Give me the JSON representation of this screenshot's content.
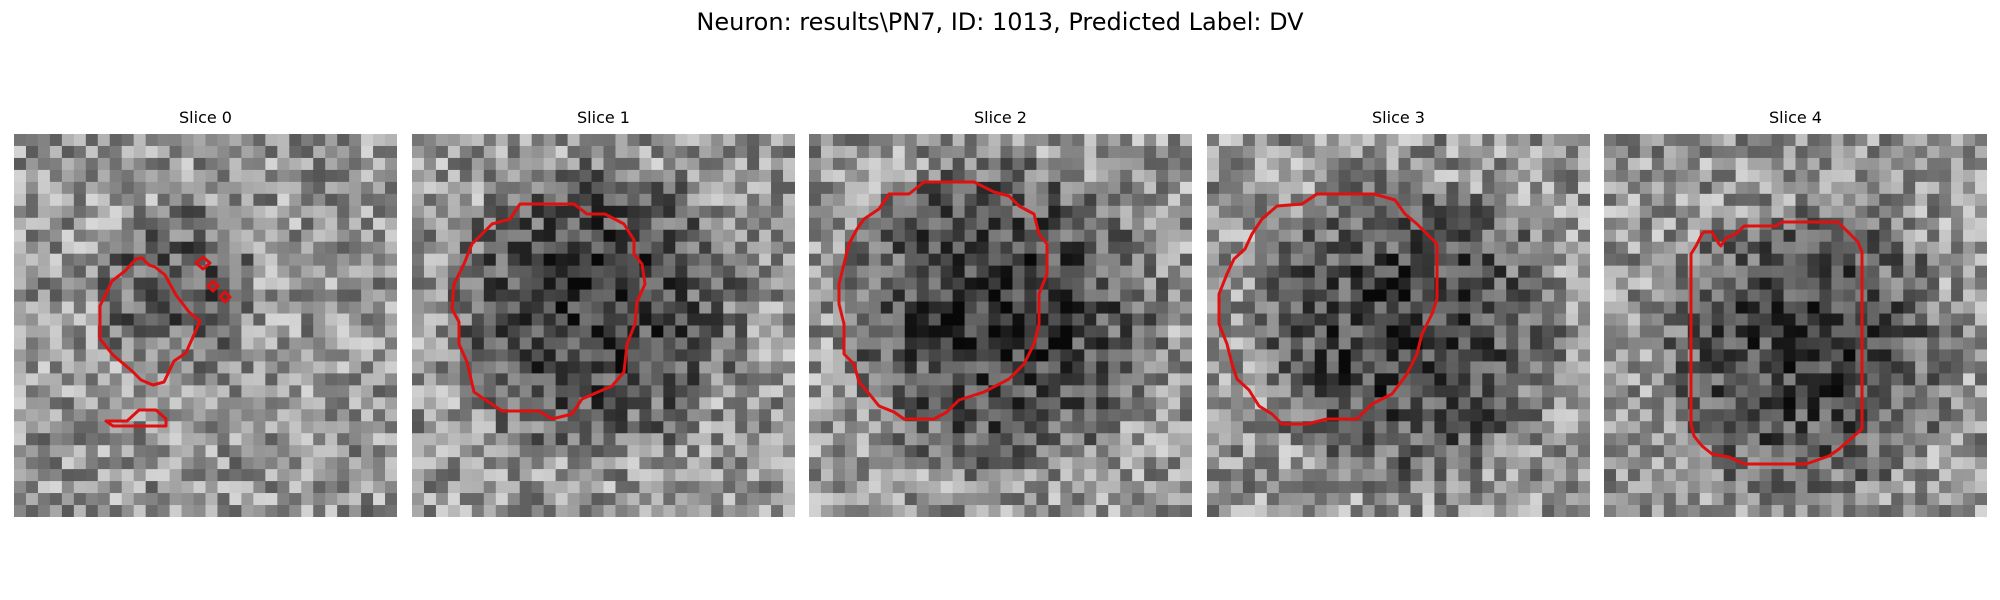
{
  "figure": {
    "title": "Neuron: results\\PN7, ID: 1013, Predicted Label: DV",
    "contour_color": "#e01010"
  },
  "slices": [
    {
      "title": "Slice 0"
    },
    {
      "title": "Slice 1"
    },
    {
      "title": "Slice 2"
    },
    {
      "title": "Slice 3"
    },
    {
      "title": "Slice 4"
    }
  ]
}
